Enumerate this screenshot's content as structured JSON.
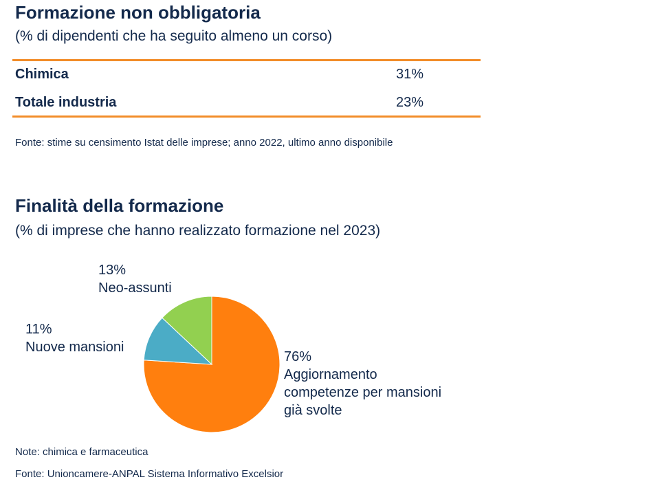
{
  "top": {
    "title": "Formazione non obbligatoria",
    "subtitle": "(% di dipendenti che ha seguito almeno un corso)",
    "rows": [
      {
        "label": "Chimica",
        "value": "31%"
      },
      {
        "label": "Totale industria",
        "value": "23%"
      }
    ],
    "source": "Fonte: stime su censimento Istat delle imprese; anno 2022, ultimo anno disponibile",
    "accent_color": "#f28c28"
  },
  "chart_data": {
    "type": "pie",
    "title": "Finalità della formazione",
    "subtitle": "(% di imprese che hanno realizzato formazione nel 2023)",
    "slices": [
      {
        "value": 76,
        "value_label": "76%",
        "label_lines": [
          "Aggiornamento",
          "competenze per mansioni",
          "già svolte"
        ],
        "color": "#ff7f0e"
      },
      {
        "value": 11,
        "value_label": "11%",
        "label_lines": [
          "Nuove mansioni"
        ],
        "color": "#4bacc6"
      },
      {
        "value": 13,
        "value_label": "13%",
        "label_lines": [
          "Neo-assunti"
        ],
        "color": "#92d050"
      }
    ],
    "start": "12 o'clock",
    "direction": "clockwise"
  },
  "notes": {
    "note": "Note: chimica e farmaceutica",
    "source": "Fonte: Unioncamere-ANPAL Sistema Informativo Excelsior"
  }
}
